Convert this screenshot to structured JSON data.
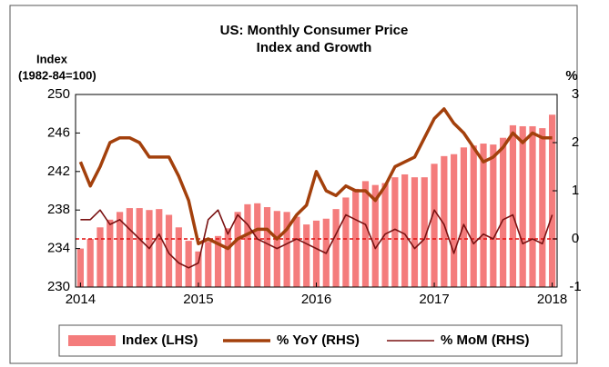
{
  "chart_data": {
    "type": "bar_line",
    "title": [
      "US: Monthly Consumer Price",
      "Index and Growth"
    ],
    "ylabel": [
      "Index",
      "(1982-84=100)"
    ],
    "y2label": "%",
    "categories": [
      "2014",
      null,
      null,
      null,
      null,
      null,
      null,
      null,
      null,
      null,
      null,
      null,
      "2015",
      null,
      null,
      null,
      null,
      null,
      null,
      null,
      null,
      null,
      null,
      null,
      "2016",
      null,
      null,
      null,
      null,
      null,
      null,
      null,
      null,
      null,
      null,
      null,
      "2017",
      null,
      null,
      null,
      null,
      null,
      null,
      null,
      null,
      null,
      null,
      null,
      "2018"
    ],
    "series": [
      {
        "name": "Index (LHS)",
        "kind": "bar",
        "color": "#f47c7c",
        "values": [
          234.0,
          235.0,
          236.2,
          237.0,
          237.8,
          238.2,
          238.2,
          238.0,
          238.1,
          237.5,
          236.2,
          234.8,
          233.7,
          234.7,
          235.3,
          236.1,
          237.8,
          238.6,
          238.7,
          238.3,
          237.9,
          237.8,
          237.3,
          236.5,
          236.9,
          237.1,
          238.1,
          239.3,
          240.2,
          241.0,
          240.6,
          240.8,
          241.4,
          241.7,
          241.4,
          241.4,
          242.8,
          243.6,
          243.8,
          244.5,
          244.7,
          244.9,
          244.8,
          245.5,
          246.8,
          246.7,
          246.7,
          246.5,
          247.9
        ]
      },
      {
        "name": "% YoY (RHS)",
        "kind": "line",
        "axis": "y2",
        "color": "#a3400c",
        "width": 3.5,
        "values": [
          1.6,
          1.1,
          1.5,
          2.0,
          2.1,
          2.1,
          2.0,
          1.7,
          1.7,
          1.7,
          1.3,
          0.8,
          -0.1,
          0.0,
          -0.1,
          -0.2,
          0.0,
          0.1,
          0.2,
          0.2,
          0.0,
          0.2,
          0.5,
          0.7,
          1.4,
          1.0,
          0.9,
          1.1,
          1.0,
          1.0,
          0.8,
          1.1,
          1.5,
          1.6,
          1.7,
          2.1,
          2.5,
          2.7,
          2.4,
          2.2,
          1.9,
          1.6,
          1.7,
          1.9,
          2.2,
          2.0,
          2.2,
          2.1,
          2.1
        ]
      },
      {
        "name": "% MoM (RHS)",
        "kind": "line",
        "axis": "y2",
        "color": "#7a1212",
        "width": 1.6,
        "values": [
          0.4,
          0.4,
          0.6,
          0.3,
          0.4,
          0.2,
          0.0,
          -0.2,
          0.1,
          -0.3,
          -0.5,
          -0.6,
          -0.5,
          0.4,
          0.6,
          0.1,
          0.5,
          0.3,
          0.0,
          -0.1,
          -0.2,
          -0.1,
          0.0,
          -0.1,
          -0.2,
          -0.3,
          0.1,
          0.5,
          0.4,
          0.3,
          -0.2,
          0.1,
          0.2,
          0.1,
          -0.2,
          0.0,
          0.6,
          0.3,
          -0.3,
          0.3,
          -0.1,
          0.1,
          0.0,
          0.4,
          0.5,
          -0.1,
          0.0,
          -0.1,
          0.5
        ]
      }
    ],
    "ylim": [
      230,
      250
    ],
    "yticks": [
      230,
      234,
      238,
      242,
      246,
      250
    ],
    "y2lim": [
      -1,
      3
    ],
    "y2ticks": [
      -1,
      0,
      1,
      2,
      3
    ],
    "reference_y2": 0,
    "reference_color": "#e01010",
    "legend": "bottom"
  }
}
